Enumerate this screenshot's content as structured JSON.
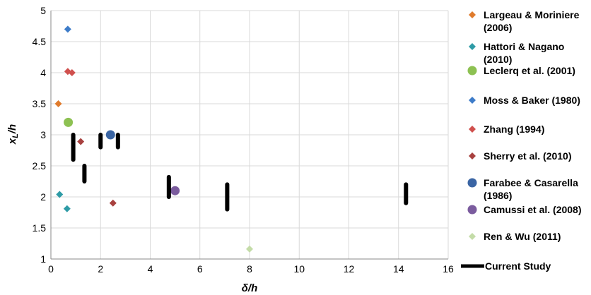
{
  "chart_data": {
    "type": "scatter",
    "xlabel": "δ/h",
    "ylabel": "x_L/h",
    "xlim": [
      0,
      16
    ],
    "ylim": [
      1,
      5
    ],
    "x_ticks": [
      "0",
      "2",
      "4",
      "6",
      "8",
      "10",
      "12",
      "14",
      "16"
    ],
    "y_ticks": [
      "1",
      "1.5",
      "2",
      "2.5",
      "3",
      "3.5",
      "4",
      "4.5",
      "5"
    ],
    "grid": "both",
    "legend_position": "right",
    "series": [
      {
        "name": "Largeau & Moriniere (2006)",
        "name_lines": [
          "Largeau & Moriniere",
          "(2006)"
        ],
        "marker": "diamond",
        "color": "#E07B2C",
        "points": [
          [
            0.3,
            3.5
          ]
        ]
      },
      {
        "name": "Hattori & Nagano (2010)",
        "name_lines": [
          "Hattori & Nagano",
          "(2010)"
        ],
        "marker": "diamond",
        "color": "#2E9BA6",
        "points": [
          [
            0.35,
            2.04
          ],
          [
            0.65,
            1.81
          ]
        ]
      },
      {
        "name": "Leclerq et al. (2001)",
        "name_lines": [
          "Leclerq et al. (2001)"
        ],
        "marker": "circle",
        "color": "#8DC152",
        "points": [
          [
            0.7,
            3.2
          ]
        ]
      },
      {
        "name": "Moss & Baker (1980)",
        "name_lines": [
          "Moss & Baker (1980)"
        ],
        "marker": "diamond",
        "color": "#3D7CC9",
        "points": [
          [
            0.68,
            4.7
          ]
        ]
      },
      {
        "name": "Zhang (1994)",
        "name_lines": [
          "Zhang (1994)"
        ],
        "marker": "diamond",
        "color": "#D0504D",
        "points": [
          [
            0.68,
            4.02
          ],
          [
            0.85,
            4.0
          ]
        ]
      },
      {
        "name": "Sherry et al. (2010)",
        "name_lines": [
          "Sherry et al. (2010)"
        ],
        "marker": "diamond",
        "color": "#A8413F",
        "points": [
          [
            1.2,
            2.89
          ],
          [
            2.5,
            1.9
          ]
        ]
      },
      {
        "name": "Farabee & Casarella (1986)",
        "name_lines": [
          "Farabee & Casarella",
          "(1986)"
        ],
        "marker": "circle",
        "color": "#3A65A4",
        "points": [
          [
            2.4,
            3.0
          ]
        ]
      },
      {
        "name": "Camussi et al. (2008)",
        "name_lines": [
          "Camussi et al. (2008)"
        ],
        "marker": "circle",
        "color": "#7B5C9E",
        "points": [
          [
            5.0,
            2.1
          ]
        ]
      },
      {
        "name": "Ren & Wu (2011)",
        "name_lines": [
          "Ren & Wu (2011)"
        ],
        "marker": "diamond",
        "color": "#C4DCA8",
        "points": [
          [
            8.0,
            1.16
          ]
        ]
      },
      {
        "name": "Current Study",
        "name_lines": [
          "Current Study"
        ],
        "marker": "vbar",
        "color": "#000000",
        "ranges": [
          {
            "x": 0.9,
            "y_low": 2.6,
            "y_high": 3.0
          },
          {
            "x": 1.35,
            "y_low": 2.25,
            "y_high": 2.5
          },
          {
            "x": 2.0,
            "y_low": 2.8,
            "y_high": 3.0
          },
          {
            "x": 2.7,
            "y_low": 2.8,
            "y_high": 3.0
          },
          {
            "x": 4.75,
            "y_low": 2.0,
            "y_high": 2.32
          },
          {
            "x": 7.1,
            "y_low": 1.8,
            "y_high": 2.2
          },
          {
            "x": 14.3,
            "y_low": 1.9,
            "y_high": 2.2
          }
        ]
      }
    ]
  }
}
